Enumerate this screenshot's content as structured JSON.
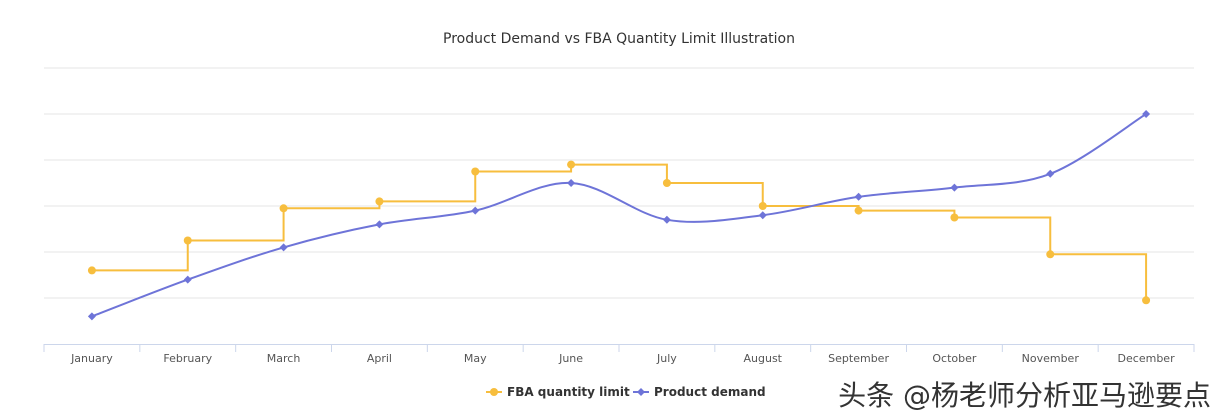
{
  "chart_data": {
    "type": "line",
    "title": "Product Demand vs FBA Quantity Limit Illustration",
    "categories": [
      "January",
      "February",
      "March",
      "April",
      "May",
      "June",
      "July",
      "August",
      "September",
      "October",
      "November",
      "December"
    ],
    "ylim": [
      0,
      6
    ],
    "yaxis_labels_visible": false,
    "grid": true,
    "legend_position": "bottom-center",
    "series": [
      {
        "name": "FBA quantity limit",
        "color": "#F7BE3E",
        "style": "step",
        "values": [
          1.6,
          2.25,
          2.95,
          3.1,
          3.75,
          3.9,
          3.5,
          3.0,
          2.9,
          2.75,
          1.95,
          0.95
        ]
      },
      {
        "name": "Product demand",
        "color": "#6E74D8",
        "style": "smooth",
        "values": [
          0.6,
          1.4,
          2.1,
          2.6,
          2.9,
          3.5,
          2.7,
          2.8,
          3.2,
          3.4,
          3.7,
          5.0
        ]
      }
    ]
  },
  "watermark": "头条 @杨老师分析亚马逊要点"
}
